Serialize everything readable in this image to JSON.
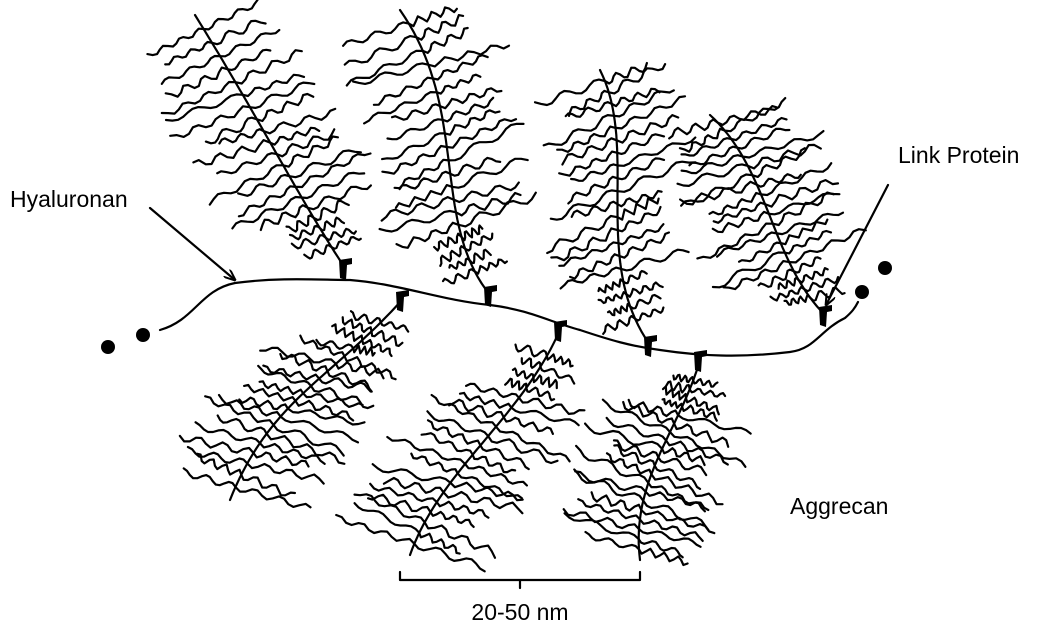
{
  "labels": {
    "hyaluronan": "Hyaluronan",
    "link_protein": "Link Protein",
    "aggrecan": "Aggrecan",
    "scale_bar": "20-50 nm"
  }
}
